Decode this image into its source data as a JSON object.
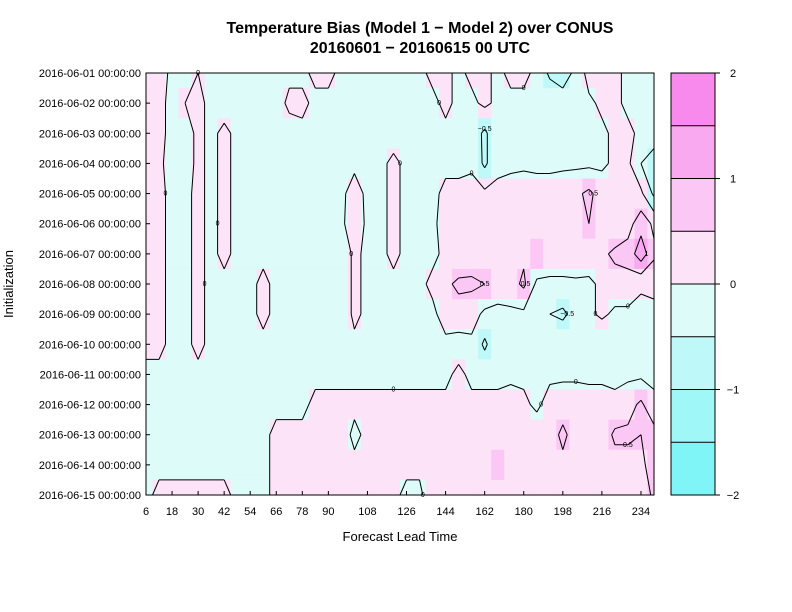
{
  "chart_data": {
    "type": "heatmap",
    "title": "Temperature Bias (Model 1 − Model 2) over CONUS",
    "subtitle": "20160601 − 20160615 00 UTC",
    "xlabel": "Forecast Lead Time",
    "ylabel": "Initialization",
    "x_ticks": [
      "6",
      "18",
      "30",
      "42",
      "54",
      "66",
      "78",
      "90",
      "108",
      "126",
      "144",
      "162",
      "180",
      "198",
      "216",
      "234"
    ],
    "y_ticks": [
      "2016-06-01 00:00:00",
      "2016-06-02 00:00:00",
      "2016-06-03 00:00:00",
      "2016-06-04 00:00:00",
      "2016-06-05 00:00:00",
      "2016-06-06 00:00:00",
      "2016-06-07 00:00:00",
      "2016-06-08 00:00:00",
      "2016-06-09 00:00:00",
      "2016-06-10 00:00:00",
      "2016-06-11 00:00:00",
      "2016-06-12 00:00:00",
      "2016-06-13 00:00:00",
      "2016-06-14 00:00:00",
      "2016-06-15 00:00:00"
    ],
    "xlim": [
      6,
      240
    ],
    "colorbar": {
      "ticks": [
        "2",
        "1",
        "0",
        "−1",
        "−2"
      ],
      "levels": [
        -2,
        -1.5,
        -1,
        -0.5,
        0,
        0.5,
        1,
        1.5,
        2
      ],
      "colors": [
        "#7ff5f7",
        "#9ff7f8",
        "#bef8f8",
        "#ddfbf9",
        "#fde3f8",
        "#fbc7f4",
        "#f9a9ef",
        "#f78aec"
      ]
    },
    "contour_levels": [
      -1,
      -0.5,
      0,
      0.5,
      1
    ],
    "contour_label_texts": {
      "neg1": "−1",
      "neg05": "−0.5",
      "zero": "0",
      "pos05": "0.5",
      "pos1": "1"
    },
    "grid_lead_times": [
      6,
      12,
      18,
      24,
      30,
      36,
      42,
      48,
      54,
      60,
      66,
      72,
      78,
      84,
      90,
      96,
      102,
      108,
      114,
      120,
      126,
      132,
      138,
      144,
      150,
      156,
      162,
      168,
      174,
      180,
      186,
      192,
      198,
      204,
      210,
      216,
      222,
      228,
      234,
      240
    ],
    "values": [
      [
        0.1,
        0.2,
        -0.1,
        -0.1,
        0,
        -0.1,
        -0.2,
        -0.2,
        -0.1,
        -0.2,
        -0.1,
        -0.1,
        -0.1,
        0.1,
        0.1,
        -0.1,
        -0.1,
        -0.2,
        -0.1,
        -0.1,
        -0.2,
        -0.1,
        0.1,
        0.1,
        -0.1,
        0.1,
        0.1,
        -0.1,
        0.1,
        0.1,
        -0.1,
        -0.6,
        -0.7,
        -0.4,
        0.2,
        0.2,
        0.1,
        -0.1,
        -0.2,
        -0.2
      ],
      [
        0.2,
        0.1,
        -0.1,
        0,
        0.1,
        -0.1,
        -0.2,
        -0.2,
        -0.1,
        -0.1,
        -0.2,
        0.1,
        0.1,
        -0.1,
        -0.1,
        -0.2,
        -0.1,
        -0.1,
        -0.2,
        -0.1,
        -0.1,
        -0.1,
        -0.1,
        0.1,
        -0.1,
        -0.1,
        0.1,
        -0.1,
        -0.1,
        -0.1,
        -0.1,
        -0.1,
        -0.3,
        -0.2,
        -0.1,
        0.1,
        0.1,
        -0.1,
        -0.3,
        -0.4
      ],
      [
        0.1,
        0.1,
        -0.1,
        -0.2,
        0.1,
        -0.1,
        0.1,
        -0.1,
        -0.2,
        -0.1,
        -0.2,
        -0.2,
        -0.1,
        -0.2,
        -0.2,
        -0.2,
        -0.2,
        -0.2,
        -0.1,
        -0.2,
        -0.2,
        -0.1,
        -0.1,
        -0.1,
        -0.1,
        -0.2,
        -0.6,
        -0.1,
        -0.1,
        -0.1,
        -0.1,
        -0.2,
        -0.2,
        -0.1,
        -0.2,
        -0.1,
        0.1,
        0.1,
        -0.1,
        -0.4
      ],
      [
        0.2,
        0.1,
        -0.2,
        -0.2,
        0.1,
        -0.1,
        0.1,
        -0.1,
        -0.2,
        -0.1,
        -0.1,
        -0.1,
        -0.1,
        -0.1,
        -0.2,
        -0.1,
        -0.1,
        -0.1,
        -0.1,
        0.1,
        -0.1,
        -0.1,
        -0.1,
        -0.1,
        -0.1,
        -0.1,
        -0.6,
        -0.1,
        -0.1,
        -0.1,
        -0.1,
        -0.1,
        -0.1,
        -0.1,
        -0.1,
        -0.1,
        0.1,
        0.1,
        -0.5,
        -0.6
      ],
      [
        0.2,
        0.1,
        -0.1,
        -0.1,
        0.1,
        -0.1,
        0.1,
        -0.1,
        -0.1,
        -0.1,
        -0.1,
        -0.1,
        -0.1,
        -0.1,
        -0.1,
        -0.1,
        0.2,
        -0.1,
        -0.1,
        0.1,
        -0.1,
        -0.4,
        -0.1,
        0.1,
        0.1,
        0.2,
        0.1,
        0.1,
        0.2,
        0.3,
        0.2,
        0.2,
        0.3,
        0.4,
        0.6,
        0.3,
        0.2,
        0.1,
        0.1,
        -0.6
      ],
      [
        0.1,
        0.1,
        -0.1,
        -0.1,
        0.1,
        -0.1,
        0.1,
        -0.1,
        -0.1,
        -0.1,
        -0.1,
        -0.1,
        -0.1,
        -0.1,
        -0.1,
        -0.1,
        0.3,
        -0.1,
        -0.1,
        0.1,
        -0.1,
        -0.4,
        -0.1,
        0.2,
        0.2,
        0.2,
        0.1,
        0.2,
        0.2,
        0.3,
        0.3,
        0.3,
        0.4,
        0.4,
        0.5,
        0.2,
        0.1,
        0.3,
        0.8,
        0.4
      ],
      [
        0.1,
        0.1,
        -0.1,
        -0.1,
        0.1,
        -0.1,
        0.1,
        -0.1,
        -0.1,
        -0.1,
        -0.1,
        -0.1,
        -0.1,
        -0.1,
        -0.1,
        -0.3,
        0.1,
        -0.1,
        -0.1,
        0.1,
        -0.1,
        -0.5,
        -0.1,
        0.1,
        0.1,
        0.2,
        0.2,
        0.2,
        0.2,
        0.4,
        0.5,
        0.3,
        0.3,
        0.4,
        0.3,
        0.4,
        0.6,
        0.7,
        1.3,
        0.6
      ],
      [
        0.1,
        0.1,
        -0.1,
        -0.1,
        0.1,
        -0.1,
        -0.1,
        -0.1,
        -0.1,
        0.1,
        -0.1,
        -0.1,
        -0.1,
        -0.1,
        -0.1,
        -0.3,
        0.1,
        -0.1,
        -0.1,
        -0.1,
        -0.1,
        -0.1,
        0.1,
        0.4,
        0.6,
        0.6,
        0.5,
        0.2,
        0.3,
        0.6,
        -0.1,
        -0.1,
        -0.1,
        -0.1,
        -0.1,
        0.1,
        0.3,
        0.3,
        0.1,
        0.1
      ],
      [
        0.1,
        0.1,
        -0.1,
        -0.1,
        0.1,
        -0.1,
        -0.1,
        -0.1,
        -0.1,
        0.1,
        -0.1,
        -0.1,
        -0.1,
        -0.1,
        -0.1,
        -0.3,
        0.1,
        -0.1,
        -0.1,
        -0.1,
        -0.1,
        -0.1,
        -0.1,
        0.2,
        0.3,
        0.2,
        -0.1,
        -0.1,
        -0.1,
        -0.1,
        -0.3,
        -0.5,
        -0.6,
        -0.3,
        -0.1,
        0.1,
        -0.1,
        -0.1,
        -0.2,
        -0.1
      ],
      [
        0.1,
        0.1,
        -0.1,
        -0.1,
        0.1,
        -0.1,
        -0.1,
        -0.1,
        -0.1,
        -0.1,
        -0.1,
        -0.1,
        -0.1,
        -0.1,
        -0.1,
        -0.1,
        -0.1,
        -0.1,
        -0.1,
        -0.1,
        -0.1,
        -0.1,
        -0.1,
        -0.1,
        -0.2,
        -0.1,
        -0.6,
        -0.1,
        -0.1,
        -0.1,
        -0.1,
        -0.2,
        -0.1,
        -0.1,
        -0.2,
        -0.5,
        -0.1,
        -0.1,
        -0.1,
        -0.1
      ],
      [
        -0.1,
        -0.1,
        -0.1,
        -0.1,
        -0.1,
        -0.1,
        -0.1,
        -0.1,
        -0.1,
        -0.1,
        -0.1,
        -0.2,
        -0.2,
        -0.1,
        -0.1,
        -0.1,
        -0.1,
        -0.1,
        -0.1,
        -0.1,
        -0.1,
        -0.1,
        -0.1,
        -0.1,
        0.1,
        -0.1,
        -0.1,
        -0.1,
        -0.1,
        -0.1,
        -0.1,
        -0.1,
        -0.1,
        -0.1,
        -0.1,
        -0.1,
        -0.1,
        -0.1,
        -0.1,
        -0.1
      ],
      [
        -0.1,
        -0.1,
        -0.1,
        -0.1,
        -0.1,
        -0.1,
        -0.1,
        -0.1,
        -0.1,
        -0.1,
        -0.1,
        -0.1,
        -0.1,
        0.1,
        0.1,
        0.1,
        0.1,
        0.1,
        0.1,
        0.1,
        0.1,
        0.1,
        0.1,
        0.1,
        0.1,
        0.1,
        0.1,
        0.1,
        0.2,
        0.1,
        -0.1,
        0.2,
        0.3,
        0.3,
        0.2,
        0.2,
        0.1,
        0.3,
        0.6,
        0.1
      ],
      [
        -0.1,
        -0.1,
        -0.1,
        -0.1,
        -0.1,
        -0.1,
        -0.1,
        -0.1,
        -0.1,
        -0.1,
        0.1,
        0.1,
        0.1,
        0.1,
        0.2,
        0.2,
        -0.1,
        0.1,
        0.1,
        0.1,
        0.1,
        0.1,
        0.1,
        0.1,
        0.1,
        0.1,
        0.3,
        0.2,
        0.3,
        0.4,
        0.3,
        0.3,
        0.6,
        0.3,
        0.3,
        0.2,
        0.6,
        0.6,
        0.5,
        0.7
      ],
      [
        -0.1,
        -0.1,
        -0.1,
        -0.1,
        -0.1,
        -0.1,
        -0.1,
        -0.1,
        -0.1,
        -0.1,
        0.1,
        0.1,
        0.1,
        0.1,
        0.1,
        0.1,
        0.1,
        0.1,
        0.1,
        0.2,
        0.1,
        0.1,
        0.1,
        0.1,
        0.2,
        0.1,
        0.3,
        0.5,
        0.3,
        0.3,
        0.3,
        0.2,
        0.4,
        0.3,
        0.3,
        0.4,
        0.3,
        0.3,
        0.4,
        0.7
      ],
      [
        -0.1,
        0.1,
        0.1,
        0.1,
        0.1,
        0.1,
        0.1,
        -0.1,
        -0.1,
        -0.1,
        0.1,
        0.1,
        0.1,
        0.1,
        0.1,
        0.2,
        0.1,
        0.2,
        0.1,
        0.1,
        -0.1,
        -0.1,
        0.3,
        0.1,
        0.1,
        0.3,
        0.1,
        0.1,
        0.2,
        0.2,
        0.3,
        0.2,
        0.3,
        0.1,
        0.2,
        0.2,
        0.3,
        0.3,
        0.2,
        0.6
      ]
    ]
  }
}
